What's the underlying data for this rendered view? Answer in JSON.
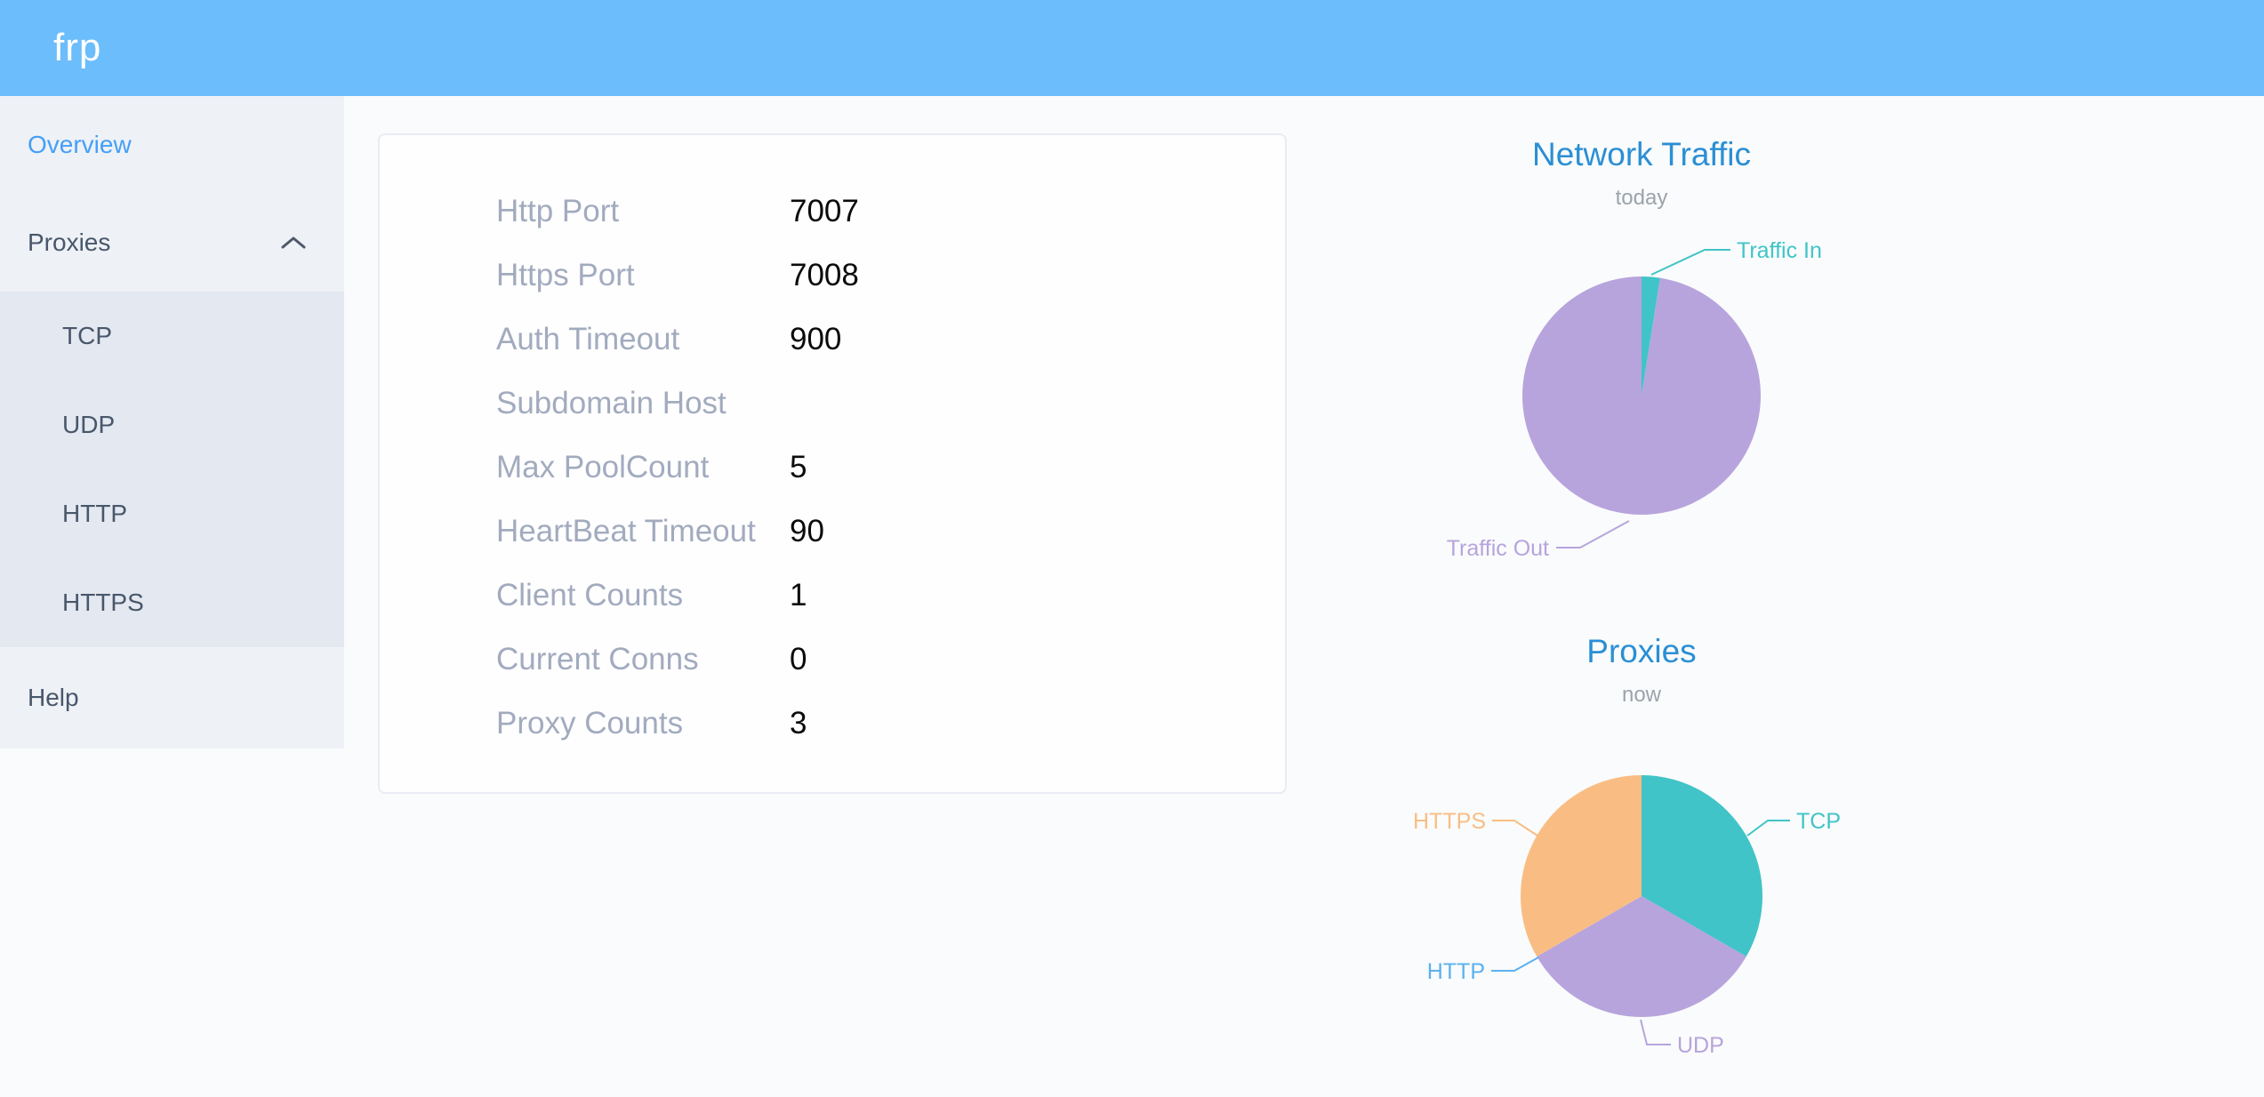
{
  "header": {
    "logo": "frp",
    "background_color": "#6cbdfc"
  },
  "sidebar": {
    "overview": "Overview",
    "proxies": "Proxies",
    "proxies_expanded": true,
    "proxy_children": [
      "TCP",
      "UDP",
      "HTTP",
      "HTTPS"
    ],
    "help": "Help",
    "active_item": "Overview",
    "active_color": "#459ff6"
  },
  "overview_table": {
    "rows": [
      {
        "label": "Http Port",
        "value": "7007"
      },
      {
        "label": "Https Port",
        "value": "7008"
      },
      {
        "label": "Auth Timeout",
        "value": "900"
      },
      {
        "label": "Subdomain Host",
        "value": ""
      },
      {
        "label": "Max PoolCount",
        "value": "5"
      },
      {
        "label": "HeartBeat Timeout",
        "value": "90"
      },
      {
        "label": "Client Counts",
        "value": "1"
      },
      {
        "label": "Current Conns",
        "value": "0"
      },
      {
        "label": "Proxy Counts",
        "value": "3"
      }
    ]
  },
  "chart_data": [
    {
      "type": "pie",
      "title": "Network Traffic",
      "subtitle": "today",
      "legend_position": "outside-labels",
      "values_are": "percent (estimated from slice angles)",
      "series": [
        {
          "name": "Traffic In",
          "value": 2.5,
          "color": "#41c4c7"
        },
        {
          "name": "Traffic Out",
          "value": 97.5,
          "color": "#b7a4dd"
        }
      ]
    },
    {
      "type": "pie",
      "title": "Proxies",
      "subtitle": "now",
      "legend_position": "outside-labels",
      "values_are": "proxy counts per type",
      "series": [
        {
          "name": "TCP",
          "value": 1,
          "color": "#41c4c7"
        },
        {
          "name": "UDP",
          "value": 1,
          "color": "#b7a4dd"
        },
        {
          "name": "HTTP",
          "value": 0,
          "color": "#5ab1ef"
        },
        {
          "name": "HTTPS",
          "value": 1,
          "color": "#f9bd84"
        }
      ]
    }
  ]
}
